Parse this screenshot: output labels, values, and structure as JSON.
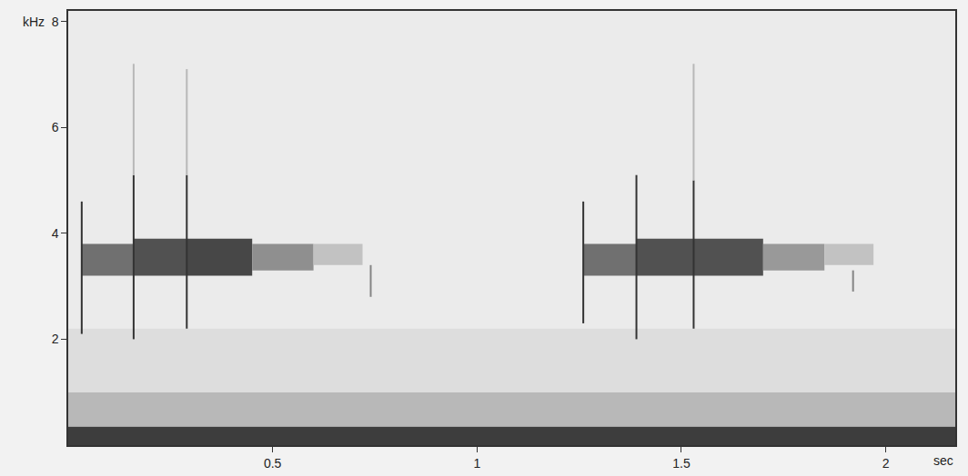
{
  "chart_data": {
    "type": "spectrogram",
    "x_label": "sec",
    "y_label": "kHz",
    "xlim": [
      0,
      2.17
    ],
    "xticks": [
      0.5,
      1,
      1.5,
      2
    ],
    "ylim": [
      0,
      8.2
    ],
    "yticks": [
      2,
      4,
      6,
      8
    ],
    "bands": [
      {
        "x0": 0,
        "x1": 2.17,
        "y0": 0,
        "y1": 0.35,
        "intensity": 0.85
      },
      {
        "x0": 0,
        "x1": 2.17,
        "y0": 0.35,
        "y1": 1.0,
        "intensity": 0.25
      },
      {
        "x0": 0,
        "x1": 2.17,
        "y0": 1.0,
        "y1": 2.2,
        "intensity": 0.07
      },
      {
        "x0": 0.033,
        "x1": 0.16,
        "y0": 3.2,
        "y1": 3.8,
        "intensity": 0.6
      },
      {
        "x0": 0.16,
        "x1": 0.29,
        "y0": 3.2,
        "y1": 3.9,
        "intensity": 0.75
      },
      {
        "x0": 0.29,
        "x1": 0.45,
        "y0": 3.2,
        "y1": 3.9,
        "intensity": 0.8
      },
      {
        "x0": 0.45,
        "x1": 0.6,
        "y0": 3.3,
        "y1": 3.8,
        "intensity": 0.45
      },
      {
        "x0": 0.6,
        "x1": 0.72,
        "y0": 3.4,
        "y1": 3.8,
        "intensity": 0.2
      },
      {
        "x0": 1.26,
        "x1": 1.39,
        "y0": 3.2,
        "y1": 3.8,
        "intensity": 0.6
      },
      {
        "x0": 1.39,
        "x1": 1.53,
        "y0": 3.2,
        "y1": 3.9,
        "intensity": 0.75
      },
      {
        "x0": 1.53,
        "x1": 1.7,
        "y0": 3.2,
        "y1": 3.9,
        "intensity": 0.75
      },
      {
        "x0": 1.7,
        "x1": 1.85,
        "y0": 3.3,
        "y1": 3.8,
        "intensity": 0.4
      },
      {
        "x0": 1.85,
        "x1": 1.97,
        "y0": 3.4,
        "y1": 3.8,
        "intensity": 0.2
      }
    ],
    "clicks": [
      {
        "x": 0.033,
        "y0": 2.1,
        "y1": 4.6,
        "intensity": 0.9
      },
      {
        "x": 0.16,
        "y0": 2.0,
        "y1": 5.1,
        "intensity": 0.9
      },
      {
        "x": 0.16,
        "y0": 5.1,
        "y1": 7.2,
        "intensity": 0.25
      },
      {
        "x": 0.29,
        "y0": 2.2,
        "y1": 5.1,
        "intensity": 0.9
      },
      {
        "x": 0.29,
        "y0": 5.1,
        "y1": 7.1,
        "intensity": 0.25
      },
      {
        "x": 0.74,
        "y0": 2.8,
        "y1": 3.4,
        "intensity": 0.5
      },
      {
        "x": 1.26,
        "y0": 2.3,
        "y1": 4.6,
        "intensity": 0.9
      },
      {
        "x": 1.39,
        "y0": 2.0,
        "y1": 5.1,
        "intensity": 0.9
      },
      {
        "x": 1.53,
        "y0": 2.2,
        "y1": 5.0,
        "intensity": 0.9
      },
      {
        "x": 1.53,
        "y0": 5.0,
        "y1": 7.2,
        "intensity": 0.25
      },
      {
        "x": 1.92,
        "y0": 2.9,
        "y1": 3.3,
        "intensity": 0.5
      }
    ]
  }
}
